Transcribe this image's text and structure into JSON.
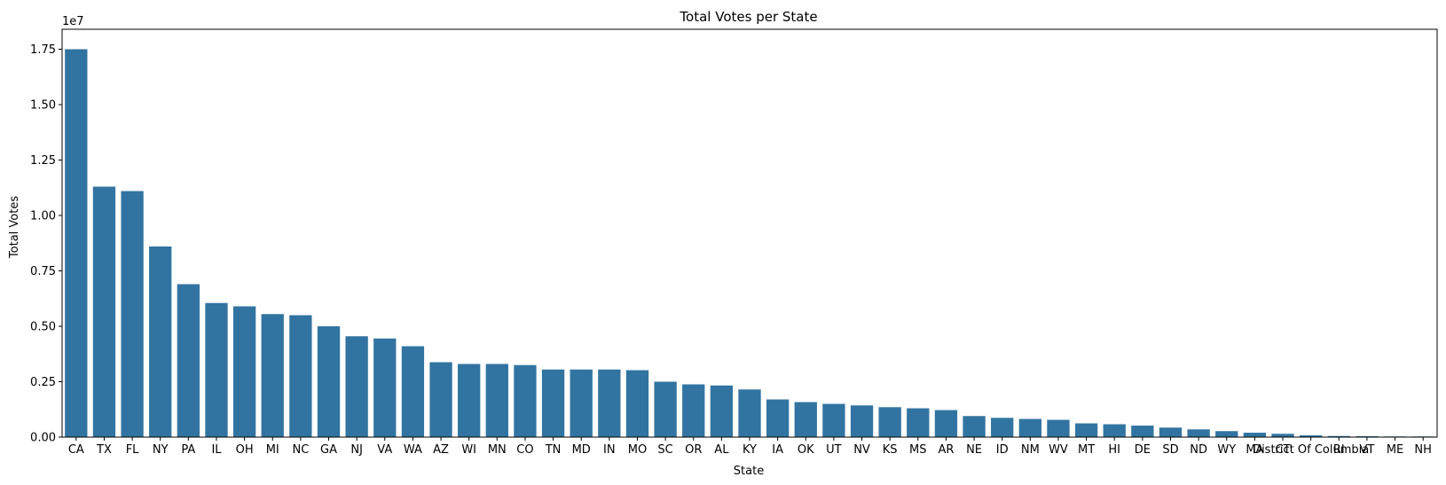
{
  "chart_data": {
    "type": "bar",
    "title": "Total Votes per State",
    "xlabel": "State",
    "ylabel": "Total Votes",
    "y_offset_label": "1e7",
    "ylim": [
      0,
      18.4
    ],
    "yticks": [
      0,
      2.5,
      5,
      7.5,
      10,
      12.5,
      15,
      17.5
    ],
    "ytick_labels": [
      "0.00",
      "0.25",
      "0.50",
      "0.75",
      "1.00",
      "1.25",
      "1.50",
      "1.75"
    ],
    "grid": false,
    "legend": "none",
    "bar_color": "#3274a1",
    "categories": [
      "CA",
      "TX",
      "FL",
      "NY",
      "PA",
      "IL",
      "OH",
      "MI",
      "NC",
      "GA",
      "NJ",
      "VA",
      "WA",
      "AZ",
      "WI",
      "MN",
      "CO",
      "TN",
      "MD",
      "IN",
      "MO",
      "SC",
      "OR",
      "AL",
      "KY",
      "IA",
      "OK",
      "UT",
      "NV",
      "KS",
      "MS",
      "AR",
      "NE",
      "ID",
      "NM",
      "WV",
      "MT",
      "HI",
      "DE",
      "SD",
      "ND",
      "WY",
      "MA",
      "CT",
      "District Of Columbia",
      "RI",
      "VT",
      "ME",
      "NH"
    ],
    "values": [
      17.5,
      11.3,
      11.1,
      8.6,
      6.9,
      6.05,
      5.9,
      5.55,
      5.5,
      5.0,
      4.55,
      4.45,
      4.1,
      3.38,
      3.3,
      3.3,
      3.25,
      3.05,
      3.05,
      3.05,
      3.02,
      2.5,
      2.38,
      2.33,
      2.15,
      1.7,
      1.58,
      1.5,
      1.43,
      1.35,
      1.3,
      1.22,
      0.95,
      0.87,
      0.82,
      0.78,
      0.62,
      0.58,
      0.52,
      0.43,
      0.35,
      0.27,
      0.2,
      0.15,
      0.08,
      0.05,
      0.04,
      0.03,
      0.03
    ]
  }
}
